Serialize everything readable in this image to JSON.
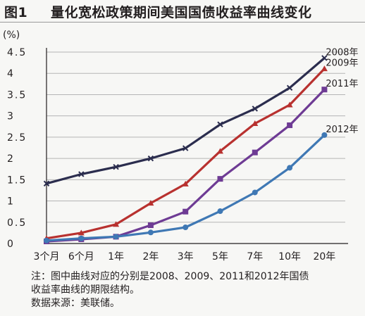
{
  "header": {
    "figure_label": "图1",
    "title": "量化宽松政策期间美国国债收益率曲线变化"
  },
  "notes": {
    "line1": "注：图中曲线对应的分别是2008、2009、2011和2012年国债",
    "line2": "收益率曲线的期限结构。",
    "source": "数据来源：美联储。"
  },
  "chart_data": {
    "type": "line",
    "title": "量化宽松政策期间美国国债收益率曲线变化",
    "xlabel": "",
    "ylabel": "(%)",
    "categories": [
      "3个月",
      "6个月",
      "1年",
      "2年",
      "3年",
      "5年",
      "7年",
      "10年",
      "20年"
    ],
    "ylim": [
      0,
      4.5
    ],
    "yticks": [
      "0",
      "0.5",
      "1",
      "1.5",
      "2",
      "2.5",
      "3",
      "3.5",
      "4",
      "4.5"
    ],
    "grid": true,
    "legend": "end-of-line labels",
    "series": [
      {
        "name": "2008年",
        "color": "#2b2d4e",
        "marker": "x",
        "values": [
          1.41,
          1.63,
          1.8,
          2.0,
          2.24,
          2.8,
          3.17,
          3.66,
          4.36
        ]
      },
      {
        "name": "2009年",
        "color": "#b8312f",
        "marker": "triangle",
        "values": [
          0.12,
          0.25,
          0.45,
          0.95,
          1.4,
          2.17,
          2.82,
          3.26,
          4.11
        ]
      },
      {
        "name": "2011年",
        "color": "#6e3b94",
        "marker": "square",
        "values": [
          0.05,
          0.1,
          0.16,
          0.43,
          0.75,
          1.52,
          2.14,
          2.78,
          3.62
        ]
      },
      {
        "name": "2012年",
        "color": "#3f78b4",
        "marker": "circle",
        "values": [
          0.07,
          0.12,
          0.16,
          0.26,
          0.38,
          0.76,
          1.2,
          1.78,
          2.55
        ]
      }
    ]
  }
}
